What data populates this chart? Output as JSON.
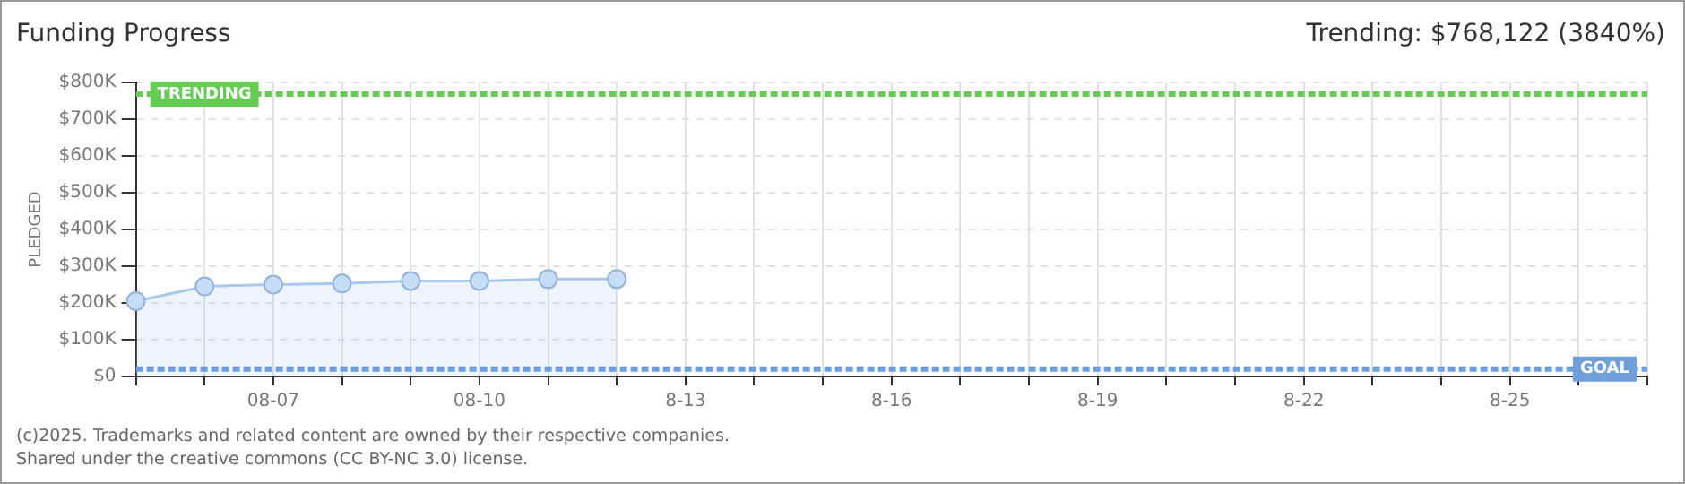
{
  "chart_data": {
    "type": "area",
    "title": "Funding Progress",
    "subtitle": "Trending: $768,122 (3840%)",
    "ylabel": "PLEDGED",
    "categories": [
      null,
      null,
      "08-07",
      null,
      null,
      "08-10",
      null,
      null,
      "8-13",
      null,
      null,
      "8-16",
      null,
      null,
      "8-19",
      null,
      null,
      "8-22",
      null,
      null,
      "8-25",
      null,
      null
    ],
    "series": [
      {
        "color": "#a9c8ec",
        "values": [
          205000,
          245000,
          250000,
          253000,
          260000,
          260000,
          265000,
          265000,
          null,
          null,
          null,
          null,
          null,
          null,
          null,
          null,
          null,
          null,
          null,
          null,
          null,
          null,
          null
        ]
      }
    ],
    "ylim": [
      0,
      800000
    ],
    "yticks": [
      {
        "value": 0,
        "label": "$0"
      },
      {
        "value": 100000,
        "label": "$100K"
      },
      {
        "value": 200000,
        "label": "$200K"
      },
      {
        "value": 300000,
        "label": "$300K"
      },
      {
        "value": 400000,
        "label": "$400K"
      },
      {
        "value": 500000,
        "label": "$500K"
      },
      {
        "value": 600000,
        "label": "$600K"
      },
      {
        "value": 700000,
        "label": "$700K"
      },
      {
        "value": 800000,
        "label": "$800K"
      }
    ],
    "ref_lines": [
      {
        "axis": "y",
        "value": 768122,
        "label": "TRENDING",
        "color": "#66cc55",
        "line_style": "dashed"
      },
      {
        "axis": "y",
        "value": 20000,
        "label": "GOAL",
        "color": "#6fa0dc",
        "line_style": "dashed"
      }
    ],
    "annotations": [
      "(c)2025. Trademarks and related content are owned by their respective companies.",
      "Shared under the creative commons (CC BY-NC 3.0) license."
    ],
    "grid": true,
    "marker": "circle",
    "legend": false
  }
}
